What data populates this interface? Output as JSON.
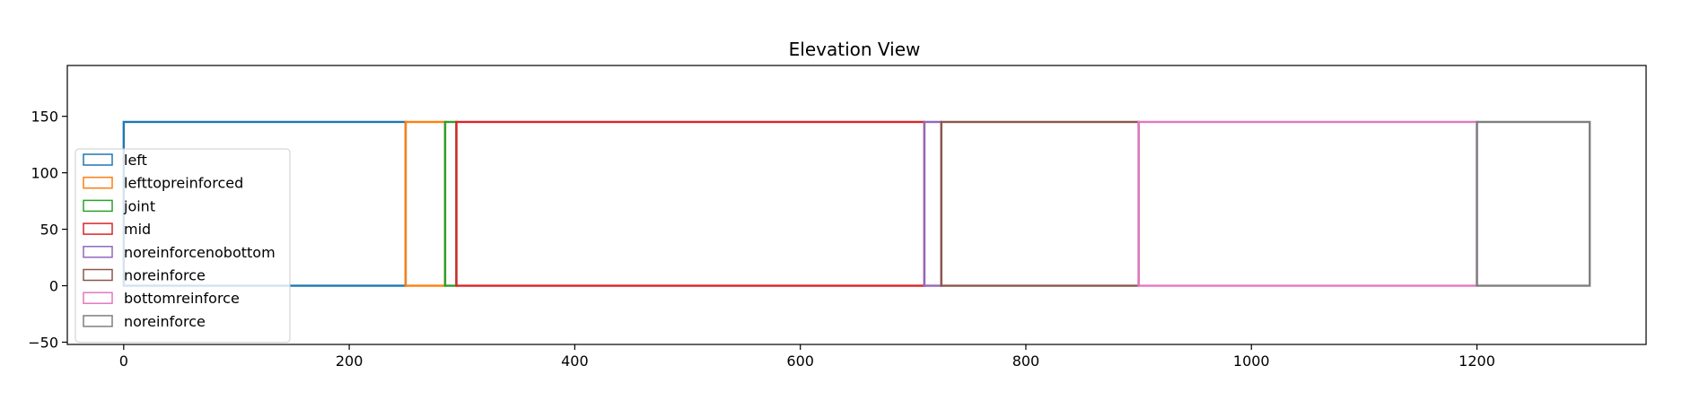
{
  "chart_data": {
    "type": "line",
    "title": "Elevation View",
    "xlabel": "",
    "ylabel": "",
    "xlim": [
      -50,
      1350
    ],
    "ylim": [
      -52,
      195
    ],
    "x_ticks": [
      0,
      200,
      400,
      600,
      800,
      1000,
      1200
    ],
    "x_tick_labels": [
      "0",
      "200",
      "400",
      "600",
      "800",
      "1000",
      "1200"
    ],
    "y_ticks": [
      -50,
      0,
      50,
      100,
      150
    ],
    "y_tick_labels": [
      "−50",
      "0",
      "50",
      "100",
      "150"
    ],
    "grid": false,
    "legend_position": "lower-left",
    "series": [
      {
        "name": "left",
        "color": "#1f77b4",
        "rect": {
          "x0": 0,
          "x1": 250,
          "y0": 0,
          "y1": 145
        }
      },
      {
        "name": "lefttopreinforced",
        "color": "#ff7f0e",
        "rect": {
          "x0": 250,
          "x1": 285,
          "y0": 0,
          "y1": 145
        }
      },
      {
        "name": "joint",
        "color": "#2ca02c",
        "rect": {
          "x0": 285,
          "x1": 295,
          "y0": 0,
          "y1": 145
        }
      },
      {
        "name": "mid",
        "color": "#d62728",
        "rect": {
          "x0": 295,
          "x1": 710,
          "y0": 0,
          "y1": 145
        }
      },
      {
        "name": "noreinforcenobottom",
        "color": "#9467bd",
        "rect": {
          "x0": 710,
          "x1": 725,
          "y0": 0,
          "y1": 145
        }
      },
      {
        "name": "noreinforce",
        "color": "#8c564b",
        "rect": {
          "x0": 725,
          "x1": 900,
          "y0": 0,
          "y1": 145
        }
      },
      {
        "name": "bottomreinforce",
        "color": "#e377c2",
        "rect": {
          "x0": 900,
          "x1": 1200,
          "y0": 0,
          "y1": 145
        }
      },
      {
        "name": "noreinforce",
        "color": "#7f7f7f",
        "rect": {
          "x0": 1200,
          "x1": 1300,
          "y0": 0,
          "y1": 145
        }
      }
    ]
  }
}
